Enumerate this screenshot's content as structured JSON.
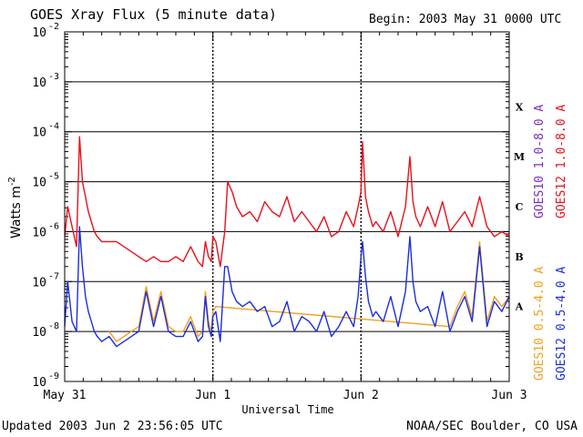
{
  "header": {
    "title": "GOES Xray Flux (5 minute data)",
    "begin": "Begin:  2003 May 31 0000 UTC"
  },
  "footer": {
    "updated": "Updated 2003 Jun  2 23:56:05 UTC",
    "source": "NOAA/SEC Boulder, CO USA"
  },
  "chart_data": {
    "type": "line",
    "title": "GOES Xray Flux (5 minute data)",
    "xlabel": "Universal Time",
    "ylabel": "Watts m",
    "ylabel_exp": "-2",
    "y_scale": "log",
    "ylim": [
      1e-09,
      0.01
    ],
    "y_ticks": [
      {
        "mant": "10",
        "exp": "-9",
        "v": -9
      },
      {
        "mant": "10",
        "exp": "-8",
        "v": -8
      },
      {
        "mant": "10",
        "exp": "-7",
        "v": -7
      },
      {
        "mant": "10",
        "exp": "-6",
        "v": -6
      },
      {
        "mant": "10",
        "exp": "-5",
        "v": -5
      },
      {
        "mant": "10",
        "exp": "-4",
        "v": -4
      },
      {
        "mant": "10",
        "exp": "-3",
        "v": -3
      },
      {
        "mant": "10",
        "exp": "-2",
        "v": -2
      }
    ],
    "x_ticks": [
      "May 31",
      "Jun 1",
      "Jun 2",
      "Jun 3"
    ],
    "xlim_days": [
      0,
      3
    ],
    "grid": true,
    "flare_classes": [
      {
        "label": "X",
        "level": -3.5
      },
      {
        "label": "M",
        "level": -4.5
      },
      {
        "label": "C",
        "level": -5.5
      },
      {
        "label": "B",
        "level": -6.5
      },
      {
        "label": "A",
        "level": -7.5
      }
    ],
    "legend": [
      {
        "name": "GOES10 1.0-8.0 A",
        "color": "#7b2bbf"
      },
      {
        "name": "GOES12 1.0-8.0 A",
        "color": "#e8101c"
      },
      {
        "name": "GOES10 0.5-4.0 A",
        "color": "#f0a020"
      },
      {
        "name": "GOES12 0.5-4.0 A",
        "color": "#1a2ee0"
      }
    ],
    "series": [
      {
        "name": "GOES12 1.0-8.0 A",
        "color": "#e8101c",
        "x_days": [
          0,
          0.02,
          0.05,
          0.08,
          0.1,
          0.12,
          0.14,
          0.16,
          0.18,
          0.2,
          0.22,
          0.25,
          0.3,
          0.35,
          0.4,
          0.45,
          0.5,
          0.55,
          0.6,
          0.65,
          0.7,
          0.75,
          0.8,
          0.85,
          0.9,
          0.93,
          0.95,
          0.97,
          0.99,
          1.0,
          1.02,
          1.05,
          1.08,
          1.1,
          1.13,
          1.16,
          1.2,
          1.25,
          1.3,
          1.35,
          1.4,
          1.45,
          1.5,
          1.55,
          1.6,
          1.65,
          1.7,
          1.75,
          1.8,
          1.85,
          1.9,
          1.95,
          1.98,
          2.0,
          2.01,
          2.03,
          2.05,
          2.08,
          2.1,
          2.15,
          2.2,
          2.25,
          2.3,
          2.33,
          2.35,
          2.37,
          2.4,
          2.45,
          2.5,
          2.55,
          2.6,
          2.65,
          2.7,
          2.75,
          2.8,
          2.85,
          2.9,
          2.95,
          3.0
        ],
        "y_exp": [
          -6.1,
          -5.5,
          -5.9,
          -6.3,
          -4.1,
          -5.0,
          -5.3,
          -5.6,
          -5.8,
          -6.0,
          -6.1,
          -6.2,
          -6.2,
          -6.2,
          -6.3,
          -6.4,
          -6.5,
          -6.6,
          -6.5,
          -6.6,
          -6.6,
          -6.5,
          -6.6,
          -6.3,
          -6.6,
          -6.7,
          -6.2,
          -6.5,
          -6.6,
          -6.1,
          -6.2,
          -6.7,
          -6.0,
          -5.0,
          -5.2,
          -5.5,
          -5.7,
          -5.6,
          -5.8,
          -5.4,
          -5.6,
          -5.7,
          -5.3,
          -5.8,
          -5.6,
          -5.8,
          -6.0,
          -5.7,
          -6.1,
          -6.0,
          -5.6,
          -5.9,
          -5.5,
          -5.2,
          -4.2,
          -5.3,
          -5.6,
          -5.9,
          -5.8,
          -6.0,
          -5.6,
          -6.1,
          -5.5,
          -4.5,
          -5.4,
          -5.7,
          -5.9,
          -5.5,
          -5.9,
          -5.4,
          -6.0,
          -5.8,
          -5.6,
          -5.9,
          -5.3,
          -5.9,
          -6.1,
          -6.0,
          -6.1
        ]
      },
      {
        "name": "GOES12 0.5-4.0 A",
        "color": "#1a2ee0",
        "x_days": [
          0,
          0.02,
          0.05,
          0.08,
          0.1,
          0.12,
          0.14,
          0.16,
          0.18,
          0.2,
          0.22,
          0.25,
          0.3,
          0.35,
          0.4,
          0.45,
          0.5,
          0.55,
          0.6,
          0.65,
          0.7,
          0.75,
          0.8,
          0.85,
          0.9,
          0.93,
          0.95,
          0.97,
          0.99,
          1.0,
          1.02,
          1.05,
          1.08,
          1.1,
          1.13,
          1.16,
          1.2,
          1.25,
          1.3,
          1.35,
          1.4,
          1.45,
          1.5,
          1.55,
          1.6,
          1.65,
          1.7,
          1.75,
          1.8,
          1.85,
          1.9,
          1.95,
          1.98,
          2.0,
          2.01,
          2.03,
          2.05,
          2.08,
          2.1,
          2.15,
          2.2,
          2.25,
          2.3,
          2.33,
          2.35,
          2.37,
          2.4,
          2.45,
          2.5,
          2.55,
          2.6,
          2.65,
          2.7,
          2.75,
          2.8,
          2.85,
          2.9,
          2.95,
          3.0
        ],
        "y_exp": [
          -7.9,
          -7.0,
          -7.8,
          -8.0,
          -5.9,
          -6.7,
          -7.3,
          -7.6,
          -7.8,
          -8.0,
          -8.1,
          -8.2,
          -8.1,
          -8.3,
          -8.2,
          -8.1,
          -8.0,
          -7.2,
          -7.9,
          -7.3,
          -8.0,
          -8.1,
          -8.1,
          -7.8,
          -8.2,
          -8.1,
          -7.3,
          -7.9,
          -8.1,
          -7.7,
          -7.6,
          -8.2,
          -6.7,
          -6.7,
          -7.2,
          -7.4,
          -7.5,
          -7.4,
          -7.6,
          -7.5,
          -7.9,
          -7.8,
          -7.4,
          -8.0,
          -7.7,
          -7.8,
          -8.0,
          -7.6,
          -8.1,
          -7.9,
          -7.6,
          -7.9,
          -7.3,
          -6.5,
          -6.2,
          -6.9,
          -7.4,
          -7.7,
          -7.6,
          -7.8,
          -7.3,
          -7.9,
          -7.2,
          -6.1,
          -7.0,
          -7.4,
          -7.6,
          -7.5,
          -7.9,
          -7.2,
          -8.0,
          -7.6,
          -7.3,
          -7.8,
          -6.3,
          -7.9,
          -7.4,
          -7.6,
          -7.3
        ]
      },
      {
        "name": "GOES10 0.5-4.0 A",
        "color": "#f0a020",
        "x_days": [
          0.3,
          0.35,
          0.4,
          0.45,
          0.5,
          0.55,
          0.6,
          0.65,
          0.7,
          0.75,
          0.8,
          0.85,
          0.9,
          0.93,
          0.95,
          0.97,
          0.99,
          1.0,
          1.02,
          2.6,
          2.65,
          2.7,
          2.75,
          2.8,
          2.85,
          2.9,
          2.95,
          3.0
        ],
        "y_exp": [
          -8.0,
          -8.2,
          -8.1,
          -8.0,
          -7.9,
          -7.1,
          -7.8,
          -7.2,
          -7.9,
          -8.0,
          -8.0,
          -7.7,
          -8.1,
          -8.0,
          -7.2,
          -7.8,
          -8.0,
          -7.6,
          -7.5,
          -7.9,
          -7.5,
          -7.2,
          -7.7,
          -6.2,
          -7.8,
          -7.3,
          -7.5,
          -7.3
        ]
      }
    ]
  }
}
